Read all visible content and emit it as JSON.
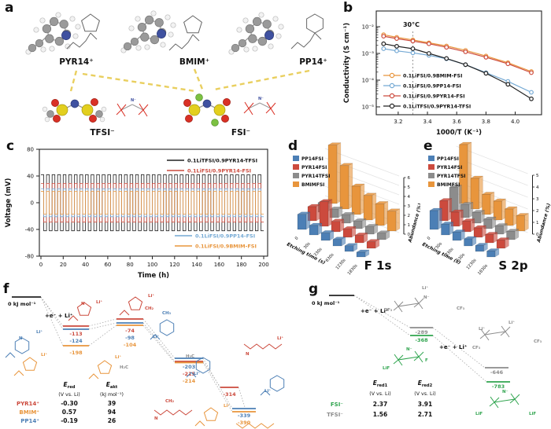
{
  "figure": {
    "bg": "#ffffff"
  },
  "panels": {
    "a": {
      "label": "a"
    },
    "b": {
      "label": "b"
    },
    "c": {
      "label": "c"
    },
    "d": {
      "label": "d"
    },
    "e": {
      "label": "e"
    },
    "f": {
      "label": "f"
    },
    "g": {
      "label": "g"
    }
  },
  "colors": {
    "orange": "#E8953C",
    "red": "#CC4A3D",
    "lightblue": "#74A9D4",
    "black": "#222222",
    "blue": "#4C7FB5",
    "gray": "#8C8C8C",
    "green": "#2FA44E",
    "yellow_dash": "#E9CF5F",
    "atom_C": "#9a9a9a",
    "atom_H": "#f2f2f2",
    "atom_N": "#3f51a0",
    "atom_S": "#e3cf1e",
    "atom_O": "#d93025",
    "atom_F": "#7cc142"
  },
  "panel_a": {
    "cation_labels": [
      "PYR14⁺",
      "BMIM⁺",
      "PP14⁺"
    ],
    "anion_labels": [
      "TFSI⁻",
      "FSI⁻"
    ],
    "skeletal_atom_labels": [
      "N⁻",
      "N⁻"
    ]
  },
  "chart_data": [
    {
      "id": "b",
      "type": "line",
      "xlabel": "1000/T (K⁻¹)",
      "ylabel": "Conductivity (S cm⁻¹)",
      "xlim": [
        3.05,
        4.18
      ],
      "ylog_exponent_range": [
        -5,
        -2
      ],
      "xticks": [
        3.2,
        3.4,
        3.6,
        3.8,
        4.0
      ],
      "ytick_labels": [
        "10⁻²",
        "10⁻³",
        "10⁻⁴",
        "10⁻⁵"
      ],
      "annotation": {
        "text": "30°C",
        "x": 3.3
      },
      "x": [
        3.1,
        3.19,
        3.3,
        3.41,
        3.53,
        3.66,
        3.8,
        3.95,
        4.11
      ],
      "series": [
        {
          "name": "0.1LiFSI/0.9BMIM-FSI",
          "color": "#E8953C",
          "values": [
            0.005,
            0.004,
            0.0032,
            0.0025,
            0.0019,
            0.0013,
            0.0008,
            0.00045,
            0.00021
          ]
        },
        {
          "name": "0.1LiFSI/0.9PP14-FSI",
          "color": "#74A9D4",
          "values": [
            0.0015,
            0.00125,
            0.00105,
            0.00085,
            0.00063,
            0.00038,
            0.00019,
            9e-05,
            3.5e-05
          ]
        },
        {
          "name": "0.1LiFSI/0.9PYR14-FSI",
          "color": "#CC4A3D",
          "values": [
            0.0044,
            0.0036,
            0.0029,
            0.0023,
            0.0017,
            0.00115,
            0.00072,
            0.00041,
            0.00019
          ]
        },
        {
          "name": "0.1LiTFSI/0.9PYR14-TFSI",
          "color": "#222222",
          "values": [
            0.0023,
            0.00185,
            0.0015,
            0.001,
            0.00065,
            0.00038,
            0.00018,
            7e-05,
            2e-05
          ]
        }
      ]
    },
    {
      "id": "c",
      "type": "square-wave",
      "xlabel": "Time (h)",
      "ylabel": "Voltage (mV)",
      "xlim": [
        0,
        200
      ],
      "ylim": [
        -80,
        80
      ],
      "xticks": [
        0,
        20,
        40,
        60,
        80,
        100,
        120,
        140,
        160,
        180,
        200
      ],
      "yticks": [
        -80,
        -40,
        0,
        40,
        80
      ],
      "cycle_hours": 5,
      "total_hours": 200,
      "series": [
        {
          "name": "0.1LiTFSI/0.9PYR14-TFSI",
          "color": "#222222",
          "amplitude_mV": 42
        },
        {
          "name": "0.1LiFSI/0.9PYR14-FSI",
          "color": "#CC4A3D",
          "amplitude_mV": 29
        },
        {
          "name": "0.1LiFSI/0.9PP14-FSI",
          "color": "#74A9D4",
          "amplitude_mV": 21
        },
        {
          "name": "0.1LiFSI/0.9BMIM-FSI",
          "color": "#E8953C",
          "amplitude_mV": 17
        }
      ],
      "legend_top": [
        0,
        1
      ],
      "legend_bottom": [
        2,
        3
      ]
    },
    {
      "id": "d",
      "type": "bar3d",
      "title": "F 1s",
      "xlabel": "Etching time (s)",
      "zlabel": "Abundance (%)",
      "categories": [
        "0",
        "30s",
        "330s",
        "630s",
        "1230s",
        "1830s"
      ],
      "zticks": [
        0,
        1,
        2,
        3,
        4,
        5,
        6
      ],
      "series": [
        {
          "name": "PP14FSI",
          "color": "#4C7FB5",
          "values": [
            1.6,
            1.0,
            0.8,
            0.7,
            0.6,
            0.5
          ]
        },
        {
          "name": "PYR14FSI",
          "color": "#CC4A3D",
          "values": [
            1.5,
            2.6,
            1.1,
            0.9,
            0.8,
            0.7
          ]
        },
        {
          "name": "PYR14TFSI",
          "color": "#8C8C8C",
          "values": [
            1.0,
            0.9,
            0.9,
            0.8,
            0.8,
            0.7
          ]
        },
        {
          "name": "BMIMFSI",
          "color": "#E8953C",
          "values": [
            6.2,
            4.6,
            3.0,
            2.6,
            2.3,
            2.1
          ]
        }
      ]
    },
    {
      "id": "e",
      "type": "bar3d",
      "title": "S 2p",
      "xlabel": "Etching time (s)",
      "zlabel": "Abundance (%)",
      "categories": [
        "0",
        "30s",
        "330s",
        "630s",
        "1230s",
        "1830s"
      ],
      "zticks": [
        0,
        1,
        2,
        3,
        4,
        5
      ],
      "series": [
        {
          "name": "PP14FSI",
          "color": "#4C7FB5",
          "values": [
            1.6,
            0.9,
            0.7,
            0.6,
            0.5,
            0.5
          ]
        },
        {
          "name": "PYR14FSI",
          "color": "#CC4A3D",
          "values": [
            1.7,
            1.2,
            0.9,
            0.8,
            0.7,
            0.7
          ]
        },
        {
          "name": "PYR14TFSI",
          "color": "#8C8C8C",
          "values": [
            2.1,
            1.1,
            0.9,
            0.8,
            0.7,
            0.7
          ]
        },
        {
          "name": "BMIMFSI",
          "color": "#E8953C",
          "values": [
            5.0,
            2.6,
            1.7,
            1.6,
            1.4,
            1.3
          ]
        }
      ]
    },
    {
      "id": "f",
      "type": "energy",
      "zero_label": "0 kJ mol⁻¹",
      "step_labels": [
        {
          "text": "+e⁻ + Li⁺",
          "x": 57,
          "y": 44
        }
      ],
      "zero": {
        "x1": 15,
        "x2": 52,
        "y": 18,
        "label_x": 10,
        "label_y": 29
      },
      "levels": [
        {
          "value": -113,
          "color": "red",
          "x1": 80,
          "x2": 113,
          "y": 55,
          "ly": 67
        },
        {
          "value": -124,
          "color": "blue",
          "x1": 80,
          "x2": 113,
          "y": 59,
          "ly": 76
        },
        {
          "value": -198,
          "color": "orange",
          "x1": 80,
          "x2": 113,
          "y": 80,
          "ly": 91
        },
        {
          "value": -74,
          "color": "red",
          "x1": 148,
          "x2": 182,
          "y": 46,
          "ly": 63
        },
        {
          "value": -98,
          "color": "blue",
          "x1": 148,
          "x2": 182,
          "y": 51,
          "ly": 72
        },
        {
          "value": -104,
          "color": "orange",
          "x1": 148,
          "x2": 182,
          "y": 54,
          "ly": 81
        },
        {
          "value": -203,
          "color": "blue",
          "x1": 222,
          "x2": 258,
          "y": 96,
          "ly": 109
        },
        {
          "value": -215,
          "color": "red",
          "x1": 222,
          "x2": 258,
          "y": 100,
          "ly": 118
        },
        {
          "value": -214,
          "color": "orange",
          "x1": 222,
          "x2": 258,
          "y": 101.5,
          "ly": 127
        },
        {
          "value": -314,
          "color": "red",
          "x1": 280,
          "x2": 303,
          "y": 133,
          "ly": 144
        },
        {
          "value": -339,
          "color": "blue",
          "x1": 295,
          "x2": 325,
          "y": 160,
          "ly": 171
        },
        {
          "value": -390,
          "color": "orange",
          "x1": 295,
          "x2": 325,
          "y": 164,
          "ly": 180
        }
      ],
      "connectors": [
        [
          52,
          18,
          80,
          55
        ],
        [
          52,
          18,
          80,
          59
        ],
        [
          52,
          18,
          80,
          80
        ],
        [
          113,
          55,
          148,
          46
        ],
        [
          113,
          59,
          148,
          51
        ],
        [
          113,
          80,
          148,
          54
        ],
        [
          182,
          46,
          222,
          96
        ],
        [
          182,
          51,
          222,
          100
        ],
        [
          182,
          54,
          222,
          101.5
        ],
        [
          258,
          96,
          295,
          160
        ],
        [
          258,
          100,
          280,
          133
        ],
        [
          258,
          101.5,
          295,
          164
        ],
        [
          303,
          133,
          311,
          158
        ]
      ],
      "table": {
        "label_x": 50,
        "header_y": 132,
        "unit_y": 144,
        "row_y": [
          156,
          167,
          178
        ],
        "col_headers": [
          {
            "main": "E",
            "sub": "red",
            "unit": "(V vs. Li)",
            "cx": 88
          },
          {
            "main": "E",
            "sub": "akt",
            "unit": "(kJ mol⁻¹)",
            "cx": 142
          }
        ],
        "rows": [
          {
            "label": "PYR14⁺",
            "color": "red",
            "v1": "-0.30",
            "v2": "39"
          },
          {
            "label": "BMIM⁺",
            "color": "orange",
            "v1": "0.57",
            "v2": "94"
          },
          {
            "label": "PP14⁺",
            "color": "blue",
            "v1": "-0.19",
            "v2": "26"
          }
        ]
      },
      "sketches": [
        {
          "kind": "hexa",
          "x": 28,
          "y": 80,
          "r": 10,
          "color": "blue",
          "labels": [
            {
              "t": "Li⁺",
              "x": 46,
              "y": 64
            },
            {
              "t": "N",
              "x": 24,
              "y": 72
            }
          ]
        },
        {
          "kind": "penta",
          "x": 107,
          "y": 34,
          "r": 9,
          "color": "red",
          "labels": [
            {
              "t": "Li⁺",
              "x": 122,
              "y": 26
            },
            {
              "t": "N",
              "x": 103,
              "y": 28
            }
          ]
        },
        {
          "kind": "penta",
          "x": 172,
          "y": 27,
          "r": 9,
          "color": "red",
          "labels": [
            {
              "t": "Li⁺",
              "x": 188,
              "y": 18
            },
            {
              "t": "CH₂",
              "x": 184,
              "y": 34
            }
          ]
        },
        {
          "kind": "penta",
          "x": 38,
          "y": 104,
          "r": 9,
          "color": "orange",
          "labels": [
            {
              "t": "Li⁺",
              "x": 52,
              "y": 93
            }
          ]
        },
        {
          "kind": "penta",
          "x": 133,
          "y": 108,
          "r": 9,
          "color": "orange",
          "labels": [
            {
              "t": "Li⁺",
              "x": 146,
              "y": 96
            },
            {
              "t": "H₂C",
              "x": 152,
              "y": 109,
              "color": "gray"
            }
          ]
        },
        {
          "kind": "hexa",
          "x": 212,
          "y": 57,
          "r": 10,
          "color": "blue",
          "labels": [
            {
              "t": "CH₃",
              "x": 206,
              "y": 40
            },
            {
              "t": "Li⁺",
              "x": 194,
              "y": 70
            }
          ]
        },
        {
          "kind": "hexa",
          "x": 258,
          "y": 105,
          "r": 10,
          "color": "blue",
          "labels": [
            {
              "t": "H₃C",
              "x": 236,
              "y": 95,
              "color": "gray"
            },
            {
              "t": "Li⁺",
              "x": 246,
              "y": 117
            }
          ]
        },
        {
          "kind": "zig",
          "x": 310,
          "y": 78,
          "color": "red",
          "labels": [
            {
              "t": "Li⁺",
              "x": 352,
              "y": 72
            },
            {
              "t": "N",
              "x": 312,
              "y": 92
            }
          ]
        },
        {
          "kind": "hexa",
          "x": 352,
          "y": 128,
          "r": 10,
          "color": "blue",
          "labels": [
            {
              "t": "Li⁺",
              "x": 336,
              "y": 139
            }
          ]
        },
        {
          "kind": "zig",
          "x": 196,
          "y": 162,
          "color": "red",
          "labels": [
            {
              "t": "CH₂",
              "x": 210,
              "y": 152
            },
            {
              "t": "N",
              "x": 196,
              "y": 174
            }
          ]
        },
        {
          "kind": "penta",
          "x": 268,
          "y": 168,
          "r": 9,
          "color": "orange",
          "labels": [
            {
              "t": "Li⁺",
              "x": 284,
              "y": 158
            }
          ]
        },
        {
          "kind": "zig",
          "x": 300,
          "y": 179,
          "color": "orange",
          "labels": []
        }
      ]
    },
    {
      "id": "g",
      "type": "energy",
      "zero_label": "0 kJ mol⁻¹",
      "step_labels": [
        {
          "text": "+e⁻ + Li⁺",
          "x": 70,
          "y": 38
        },
        {
          "text": "+e⁻ + Li⁺",
          "x": 170,
          "y": 84
        }
      ],
      "zero": {
        "x1": 30,
        "x2": 62,
        "y": 16,
        "label_x": 8,
        "label_y": 28
      },
      "levels": [
        {
          "value": -289,
          "color": "gray",
          "x1": 133,
          "x2": 162,
          "y": 57,
          "ly": 65
        },
        {
          "value": -368,
          "color": "green",
          "x1": 133,
          "x2": 162,
          "y": 67,
          "ly": 75
        },
        {
          "value": -646,
          "color": "gray",
          "x1": 228,
          "x2": 258,
          "y": 108,
          "ly": 116
        },
        {
          "value": -783,
          "color": "green",
          "x1": 230,
          "x2": 260,
          "y": 126,
          "ly": 134
        }
      ],
      "connectors": [
        [
          62,
          16,
          133,
          57
        ],
        [
          62,
          16,
          133,
          67
        ],
        [
          162,
          57,
          228,
          108
        ],
        [
          162,
          67,
          230,
          126
        ]
      ],
      "table": {
        "label_x": 48,
        "header_y": 130,
        "unit_y": 143,
        "row_y": [
          157,
          170
        ],
        "col_headers": [
          {
            "main": "E",
            "sub": "red1",
            "unit": "(V vs. Li)",
            "cx": 95
          },
          {
            "main": "E",
            "sub": "red2",
            "unit": "(V vs. Li)",
            "cx": 152
          }
        ],
        "rows": [
          {
            "label": "FSI⁻",
            "color": "green",
            "v1": "2.37",
            "v2": "3.91"
          },
          {
            "label": "TFSI⁻",
            "color": "gray",
            "v1": "1.56",
            "v2": "2.71"
          }
        ]
      },
      "sketches": [
        {
          "kind": "skel",
          "x": 118,
          "y": 30,
          "color": "gray",
          "labels": [
            {
              "t": "CF₃",
              "x": 100,
              "y": 36
            },
            {
              "t": "Li⁺",
              "x": 148,
              "y": 8
            },
            {
              "t": "CF₃",
              "x": 192,
              "y": 34
            },
            {
              "t": "N⁻",
              "x": 150,
              "y": 20
            }
          ]
        },
        {
          "kind": "skel",
          "x": 228,
          "y": 66,
          "color": "gray",
          "labels": [
            {
              "t": "Li⁺",
              "x": 258,
              "y": 52
            },
            {
              "t": "Li⁺",
              "x": 220,
              "y": 60
            },
            {
              "t": "CF₃",
              "x": 212,
              "y": 84
            },
            {
              "t": "CF₃",
              "x": 290,
              "y": 76
            }
          ]
        },
        {
          "kind": "skel",
          "x": 118,
          "y": 98,
          "color": "green",
          "labels": [
            {
              "t": "LiF",
              "x": 98,
              "y": 110
            },
            {
              "t": "N⁻",
              "x": 128,
              "y": 86
            },
            {
              "t": "F",
              "x": 152,
              "y": 100
            }
          ]
        },
        {
          "kind": "skel",
          "x": 240,
          "y": 152,
          "color": "green",
          "labels": [
            {
              "t": "LiF",
              "x": 216,
              "y": 168
            },
            {
              "t": "LiF",
              "x": 284,
              "y": 168
            },
            {
              "t": "N⁻",
              "x": 250,
              "y": 140
            }
          ]
        }
      ]
    }
  ]
}
